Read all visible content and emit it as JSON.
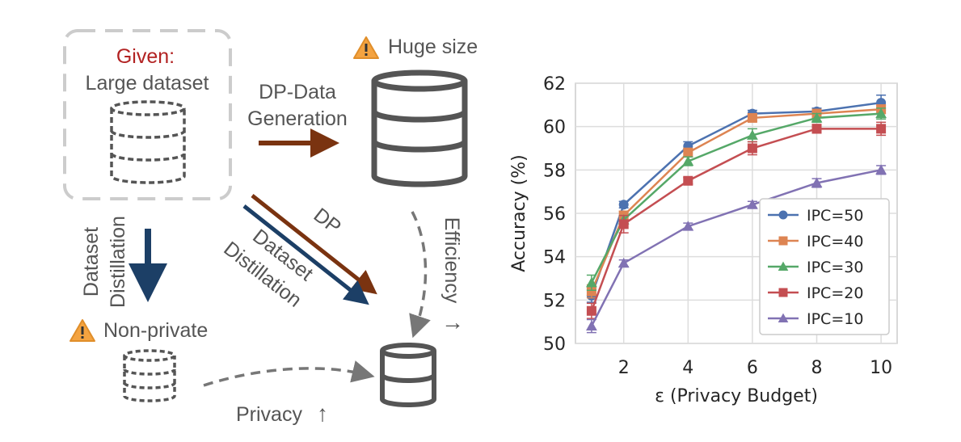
{
  "diagram": {
    "given_label": "Given:",
    "large_dataset_label": "Large dataset",
    "huge_size_label": "Huge size",
    "dp_data_generation_label": [
      "DP-Data",
      "Generation"
    ],
    "dataset_distillation_vertical_label": [
      "Dataset",
      "Distillation"
    ],
    "dp_label": "DP",
    "dataset_distillation_diagonal_label": [
      "Dataset",
      "Distillation"
    ],
    "efficiency_label": "Efficiency",
    "efficiency_arrow": "→",
    "non_private_label": "Non-private",
    "privacy_label": "Privacy",
    "privacy_arrow": "↑",
    "colors": {
      "given": "#b22222",
      "dp_arrow": "#7a3310",
      "distill_arrow": "#1c3f66",
      "warning": "#f4a340",
      "db": "#555555",
      "dashed": "#cccccc"
    }
  },
  "chart_data": {
    "type": "line",
    "xlabel": "ε (Privacy Budget)",
    "ylabel": "Accuracy (%)",
    "x": [
      1,
      2,
      4,
      6,
      8,
      10
    ],
    "xticks": [
      2,
      4,
      6,
      8,
      10
    ],
    "yticks": [
      50,
      52,
      54,
      56,
      58,
      60,
      62
    ],
    "xlim": [
      0.5,
      10.5
    ],
    "ylim": [
      50,
      62
    ],
    "grid": true,
    "legend_position": "lower-right",
    "series": [
      {
        "name": "IPC=50",
        "marker": "circle",
        "color": "#4c72b0",
        "values": [
          52.2,
          56.4,
          59.1,
          60.6,
          60.7,
          61.1
        ],
        "errors": [
          0.3,
          0.15,
          0.2,
          0.15,
          0.15,
          0.35
        ]
      },
      {
        "name": "IPC=40",
        "marker": "square",
        "color": "#dd8452",
        "values": [
          52.4,
          55.9,
          58.8,
          60.4,
          60.6,
          60.8
        ],
        "errors": [
          0.3,
          0.2,
          0.2,
          0.15,
          0.15,
          0.2
        ]
      },
      {
        "name": "IPC=30",
        "marker": "triangle",
        "color": "#55a868",
        "values": [
          52.8,
          55.7,
          58.4,
          59.6,
          60.4,
          60.6
        ],
        "errors": [
          0.35,
          0.2,
          0.2,
          0.3,
          0.2,
          0.25
        ]
      },
      {
        "name": "IPC=20",
        "marker": "square",
        "color": "#c44e52",
        "values": [
          51.5,
          55.5,
          57.5,
          59.0,
          59.9,
          59.9
        ],
        "errors": [
          0.35,
          0.4,
          0.15,
          0.3,
          0.2,
          0.3
        ]
      },
      {
        "name": "IPC=10",
        "marker": "triangle",
        "color": "#8172b3",
        "values": [
          50.8,
          53.7,
          55.4,
          56.4,
          57.4,
          58.0
        ],
        "errors": [
          0.3,
          0.15,
          0.15,
          0.15,
          0.2,
          0.2
        ]
      }
    ]
  }
}
